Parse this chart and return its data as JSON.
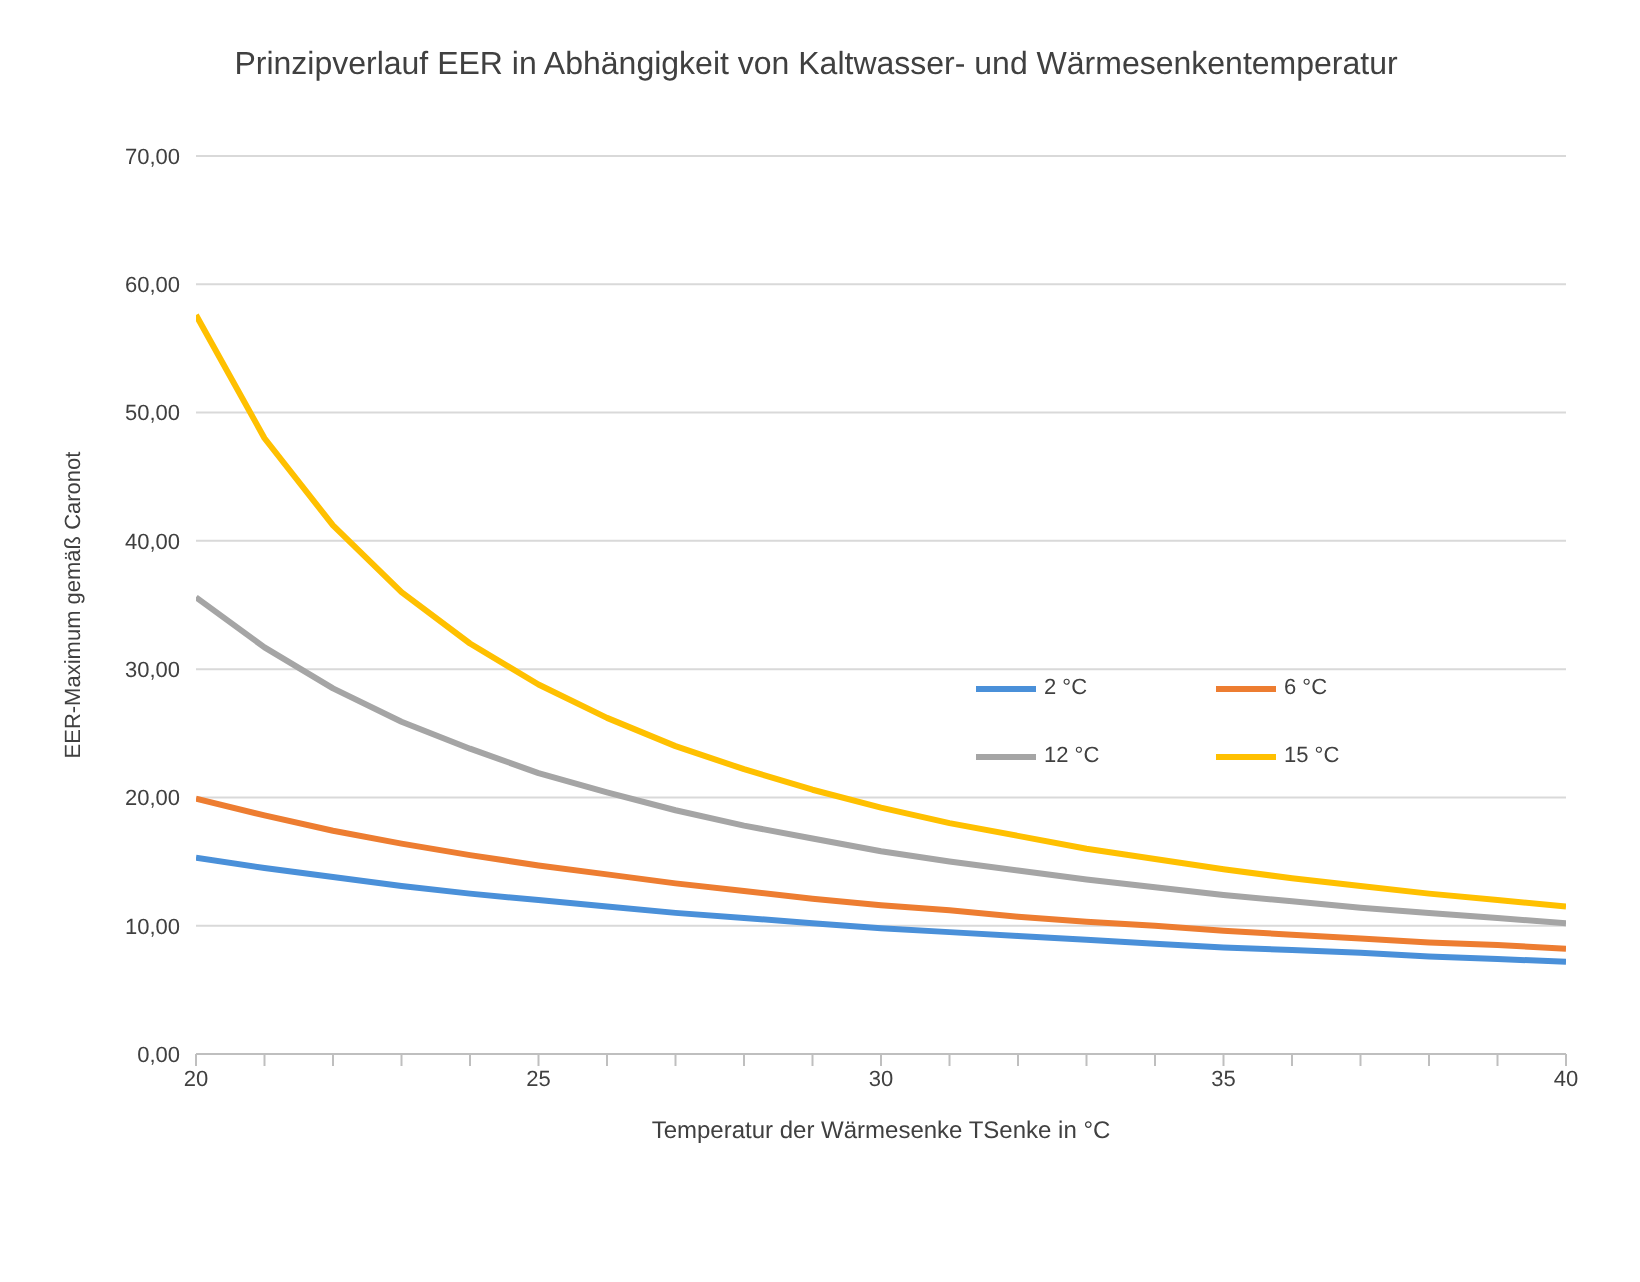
{
  "chart_data": {
    "type": "line",
    "title": "Prinzipverlauf EER in Abhängigkeit von Kaltwasser- und Wärmesenkentemperatur",
    "xlabel": "Temperatur der Wärmesenke TSenke in °C",
    "ylabel": "EER-Maximum gemäß Caronot",
    "x": [
      20,
      21,
      22,
      23,
      24,
      25,
      26,
      27,
      28,
      29,
      30,
      31,
      32,
      33,
      34,
      35,
      36,
      37,
      38,
      39,
      40
    ],
    "series": [
      {
        "name": "2 °C",
        "color": "#4a90d9",
        "values": [
          15.3,
          14.5,
          13.8,
          13.1,
          12.5,
          12.0,
          11.5,
          11.0,
          10.6,
          10.2,
          9.8,
          9.5,
          9.2,
          8.9,
          8.6,
          8.3,
          8.1,
          7.9,
          7.6,
          7.4,
          7.2
        ]
      },
      {
        "name": "6 °C",
        "color": "#ed7d31",
        "values": [
          19.9,
          18.6,
          17.4,
          16.4,
          15.5,
          14.7,
          14.0,
          13.3,
          12.7,
          12.1,
          11.6,
          11.2,
          10.7,
          10.3,
          10.0,
          9.6,
          9.3,
          9.0,
          8.7,
          8.5,
          8.2
        ]
      },
      {
        "name": "12 °C",
        "color": "#a5a5a5",
        "values": [
          35.6,
          31.7,
          28.5,
          25.9,
          23.8,
          21.9,
          20.4,
          19.0,
          17.8,
          16.8,
          15.8,
          15.0,
          14.3,
          13.6,
          13.0,
          12.4,
          11.9,
          11.4,
          11.0,
          10.6,
          10.2
        ]
      },
      {
        "name": "15 °C",
        "color": "#ffc000",
        "values": [
          57.6,
          48.0,
          41.2,
          36.0,
          32.0,
          28.8,
          26.2,
          24.0,
          22.2,
          20.6,
          19.2,
          18.0,
          17.0,
          16.0,
          15.2,
          14.4,
          13.7,
          13.1,
          12.5,
          12.0,
          11.5
        ]
      }
    ],
    "xlim": [
      20,
      40
    ],
    "xticks": [
      20,
      {
        "value": 21,
        "label": null
      },
      {
        "value": 22,
        "label": null
      },
      {
        "value": 23,
        "label": null
      },
      {
        "value": 24,
        "label": null
      },
      25,
      {
        "value": 26,
        "label": null
      },
      {
        "value": 27,
        "label": null
      },
      {
        "value": 28,
        "label": null
      },
      {
        "value": 29,
        "label": null
      },
      30,
      {
        "value": 31,
        "label": null
      },
      {
        "value": 32,
        "label": null
      },
      {
        "value": 33,
        "label": null
      },
      {
        "value": 34,
        "label": null
      },
      35,
      {
        "value": 36,
        "label": null
      },
      {
        "value": 37,
        "label": null
      },
      {
        "value": 38,
        "label": null
      },
      {
        "value": 39,
        "label": null
      },
      40
    ],
    "ylim": [
      0,
      70
    ],
    "yticks": [
      {
        "value": 0,
        "label": "0,00"
      },
      {
        "value": 10,
        "label": "10,00"
      },
      {
        "value": 20,
        "label": "20,00"
      },
      {
        "value": 30,
        "label": "30,00"
      },
      {
        "value": 40,
        "label": "40,00"
      },
      {
        "value": 50,
        "label": "50,00"
      },
      {
        "value": 60,
        "label": "60,00"
      },
      {
        "value": 70,
        "label": "70,00"
      }
    ],
    "grid": "y",
    "legend": "right",
    "marker": "none",
    "line_style": "solid"
  }
}
